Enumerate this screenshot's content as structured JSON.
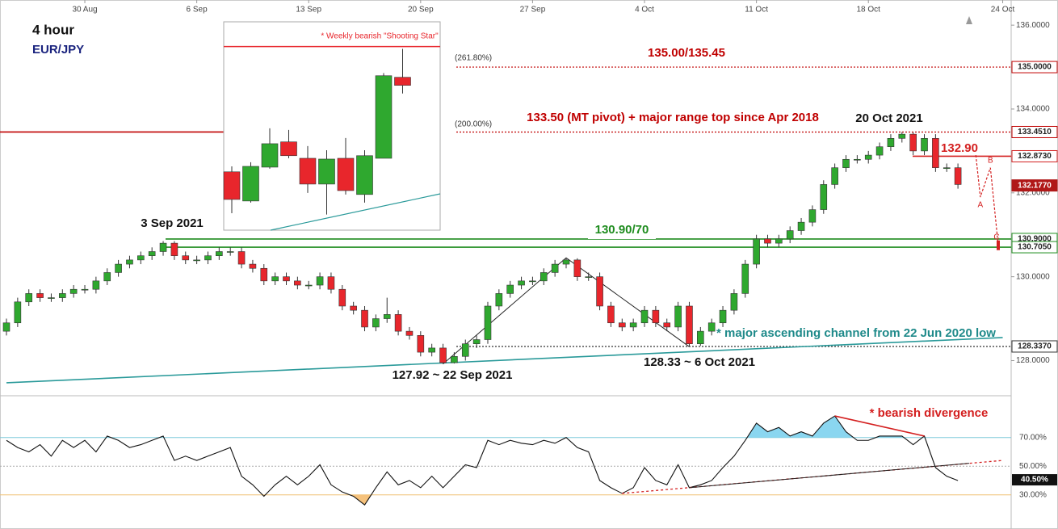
{
  "chart_data": [
    {
      "type": "candlestick",
      "title": "4 hour",
      "subtitle": "EUR/JPY",
      "categories": [
        null,
        null,
        null,
        null,
        null,
        null,
        null,
        "30 Aug",
        null,
        null,
        null,
        null,
        null,
        null,
        null,
        null,
        null,
        "6 Sep",
        null,
        null,
        null,
        null,
        null,
        null,
        null,
        null,
        null,
        "13 Sep",
        null,
        null,
        null,
        null,
        null,
        null,
        null,
        null,
        null,
        "20 Sep",
        null,
        null,
        null,
        null,
        null,
        null,
        null,
        null,
        null,
        "27 Sep",
        null,
        null,
        null,
        null,
        null,
        null,
        null,
        null,
        null,
        "4 Oct",
        null,
        null,
        null,
        null,
        null,
        null,
        null,
        null,
        null,
        "11 Oct",
        null,
        null,
        null,
        null,
        null,
        null,
        null,
        null,
        null,
        "18 Oct",
        null,
        null,
        null,
        null,
        null,
        null,
        null,
        null,
        null,
        null,
        null,
        "24 Oct"
      ],
      "open": [
        128.7,
        128.9,
        129.4,
        129.6,
        129.5,
        129.5,
        129.6,
        129.7,
        129.7,
        129.9,
        130.1,
        130.3,
        130.4,
        130.5,
        130.6,
        130.8,
        130.5,
        130.4,
        130.4,
        130.5,
        130.6,
        130.6,
        130.3,
        130.2,
        129.9,
        130.0,
        129.9,
        129.8,
        129.8,
        130.0,
        129.7,
        129.3,
        129.2,
        128.8,
        129.0,
        129.1,
        128.7,
        128.6,
        128.2,
        128.3,
        127.95,
        128.1,
        128.4,
        128.5,
        129.3,
        129.6,
        129.8,
        129.9,
        129.9,
        130.1,
        130.3,
        130.4,
        130.0,
        130.0,
        129.3,
        128.9,
        128.8,
        128.9,
        129.2,
        128.9,
        128.8,
        129.3,
        128.4,
        128.7,
        128.9,
        129.2,
        129.6,
        130.3,
        130.9,
        130.8,
        130.9,
        131.1,
        131.3,
        131.6,
        132.2,
        132.6,
        132.8,
        132.8,
        132.9,
        133.1,
        133.3,
        133.4,
        133.0,
        133.3,
        132.6,
        132.6,
        null,
        null,
        null,
        null
      ],
      "high": [
        129.0,
        129.5,
        129.7,
        129.7,
        129.6,
        129.7,
        129.8,
        129.8,
        130.0,
        130.2,
        130.4,
        130.5,
        130.6,
        130.7,
        130.85,
        130.85,
        130.6,
        130.5,
        130.6,
        130.7,
        130.7,
        130.7,
        130.4,
        130.3,
        130.1,
        130.1,
        130.0,
        129.9,
        130.1,
        130.1,
        129.8,
        129.4,
        129.3,
        129.1,
        129.5,
        129.2,
        128.8,
        128.7,
        128.4,
        128.4,
        128.2,
        128.5,
        128.6,
        129.4,
        129.7,
        129.9,
        130.0,
        130.0,
        130.2,
        130.4,
        130.45,
        130.44,
        130.1,
        130.1,
        129.4,
        129.0,
        129.0,
        129.3,
        129.3,
        129.0,
        129.4,
        129.4,
        128.8,
        129.0,
        129.3,
        129.7,
        130.4,
        131.0,
        131.0,
        131.0,
        131.2,
        131.4,
        131.7,
        132.3,
        132.7,
        132.9,
        132.9,
        133.0,
        133.2,
        133.4,
        133.45,
        133.44,
        133.4,
        133.4,
        132.7,
        132.7,
        null,
        null,
        null,
        null
      ],
      "low": [
        128.6,
        128.8,
        129.3,
        129.4,
        129.4,
        129.4,
        129.5,
        129.6,
        129.6,
        129.8,
        130.0,
        130.2,
        130.3,
        130.4,
        130.5,
        130.4,
        130.3,
        130.3,
        130.3,
        130.4,
        130.5,
        130.2,
        130.1,
        129.8,
        129.8,
        129.8,
        129.7,
        129.7,
        129.7,
        129.6,
        129.2,
        129.1,
        128.7,
        128.7,
        128.9,
        128.6,
        128.5,
        128.1,
        128.1,
        127.92,
        127.93,
        128.0,
        128.3,
        128.4,
        129.2,
        129.5,
        129.7,
        129.8,
        129.8,
        130.0,
        130.2,
        129.9,
        129.9,
        129.2,
        128.8,
        128.7,
        128.7,
        128.8,
        128.8,
        128.7,
        128.7,
        128.33,
        128.35,
        128.6,
        128.8,
        129.1,
        129.5,
        130.2,
        130.7,
        130.7,
        130.8,
        131.0,
        131.2,
        131.5,
        132.1,
        132.5,
        132.7,
        132.7,
        132.8,
        133.0,
        133.2,
        132.9,
        132.9,
        132.5,
        132.5,
        132.1,
        null,
        null,
        null,
        null
      ],
      "close": [
        128.9,
        129.4,
        129.6,
        129.5,
        129.5,
        129.6,
        129.7,
        129.7,
        129.9,
        130.1,
        130.3,
        130.4,
        130.5,
        130.6,
        130.8,
        130.5,
        130.4,
        130.4,
        130.5,
        130.6,
        130.6,
        130.3,
        130.2,
        129.9,
        130.0,
        129.9,
        129.8,
        129.8,
        130.0,
        129.7,
        129.3,
        129.2,
        128.8,
        129.0,
        129.1,
        128.7,
        128.6,
        128.2,
        128.3,
        127.95,
        128.1,
        128.4,
        128.5,
        129.3,
        129.6,
        129.8,
        129.9,
        129.9,
        130.1,
        130.3,
        130.4,
        130.0,
        130.0,
        129.3,
        128.9,
        128.8,
        128.9,
        129.2,
        128.9,
        128.8,
        129.3,
        128.4,
        128.7,
        128.9,
        129.2,
        129.6,
        130.3,
        130.9,
        130.8,
        130.9,
        131.1,
        131.3,
        131.6,
        132.2,
        132.6,
        132.8,
        132.8,
        132.9,
        133.1,
        133.3,
        133.4,
        133.0,
        133.3,
        132.6,
        132.6,
        132.2,
        null,
        null,
        null,
        null
      ],
      "up_color": "#2fa82f",
      "down_color": "#e8262c",
      "ylim": [
        127.2,
        136.6
      ],
      "yticks": [
        {
          "value": 128,
          "label": "128.0000"
        },
        {
          "value": 130,
          "label": "130.0000"
        },
        {
          "value": 132,
          "label": "132.0000"
        },
        {
          "value": 134,
          "label": "134.0000"
        },
        {
          "value": 136,
          "label": "136.0000"
        }
      ],
      "levels": [
        {
          "value": 135.0,
          "label": "135.0000",
          "color": "#c00000"
        },
        {
          "value": 133.451,
          "label": "133.4510",
          "color": "#c00000"
        },
        {
          "value": 132.873,
          "label": "132.8730",
          "color": "#d42020"
        },
        {
          "value": 132.177,
          "label": "132.1770",
          "color": "#b01818",
          "highlight": true
        },
        {
          "value": 130.9,
          "label": "130.9000",
          "color": "#1e8c1e"
        },
        {
          "value": 130.705,
          "label": "130.7050",
          "color": "#1e8c1e"
        },
        {
          "value": 128.337,
          "label": "128.3370",
          "color": "#333333"
        }
      ],
      "zigzag": {
        "x": [
          39,
          50,
          61
        ],
        "values": [
          127.92,
          130.45,
          128.33
        ]
      },
      "channel": {
        "x": [
          0,
          89
        ],
        "values": [
          127.47,
          128.55
        ],
        "color": "#2a9a9a"
      },
      "projection": [
        {
          "x": 86.6,
          "value": 132.9
        },
        {
          "x": 87.0,
          "value": 131.9,
          "label": "A"
        },
        {
          "x": 87.9,
          "value": 132.6,
          "label": "B"
        },
        {
          "x": 88.6,
          "value": 130.75,
          "label": "C"
        }
      ],
      "annotations": {
        "fib_261": "(261.80%)",
        "target": "135.00/135.45",
        "fib_200": "(200.00%)",
        "pivot": "133.50 (MT pivot) + major range top since Apr 2018",
        "high_date": "20 Oct 2021",
        "resistance": "132.90",
        "sep_high": "3 Sep 2021",
        "support": "130.90/70",
        "sep_low": "127.92 ~ 22 Sep 2021",
        "oct_low": "128.33 ~ 6 Oct 2021",
        "channel": "* major ascending channel from 22 Jun 2020 low"
      }
    },
    {
      "type": "line",
      "color": "#111111",
      "values": [
        68,
        63,
        60,
        65,
        57,
        68,
        63,
        68,
        60,
        71,
        68,
        63,
        65,
        68,
        71,
        54,
        57,
        54,
        57,
        60,
        63,
        43,
        37,
        29,
        37,
        43,
        37,
        43,
        51,
        37,
        32,
        29,
        23,
        35,
        46,
        37,
        40,
        35,
        43,
        35,
        43,
        51,
        49,
        68,
        65,
        68,
        66,
        65,
        68,
        66,
        70,
        63,
        60,
        40,
        35,
        31,
        35,
        49,
        40,
        37,
        51,
        35,
        37,
        40,
        49,
        57,
        68,
        80,
        74,
        77,
        71,
        74,
        71,
        80,
        85,
        74,
        68,
        68,
        71,
        71,
        71,
        65,
        71,
        49,
        43,
        40,
        null,
        null,
        null,
        null
      ],
      "ylim": [
        9,
        98
      ],
      "yticks": [
        {
          "value": 30,
          "label": "30.00%"
        },
        {
          "value": 50,
          "label": "50.00%"
        },
        {
          "value": 70,
          "label": "70.00%"
        }
      ],
      "tick_colors": [
        "#f0c070",
        "#aaaaaa",
        "#7cc8d8"
      ],
      "tick_styles": [
        "solid",
        "dotted",
        "solid"
      ],
      "overbought_fill": "#8ad6f0",
      "oversold_fill": "#f6c27c",
      "last": {
        "value": 40.5,
        "label": "40.50%"
      },
      "divergence": {
        "x": [
          74,
          82
        ],
        "values": [
          85,
          71
        ],
        "color": "#d42020",
        "label": "* bearish divergence"
      },
      "support": {
        "x": [
          55,
          89
        ],
        "values": [
          31,
          54
        ],
        "color": "#d42020"
      },
      "trendline": {
        "x": [
          61,
          86
        ],
        "values": [
          35,
          52
        ],
        "color": "#222222"
      }
    },
    {
      "type": "candlestick",
      "open": [
        128.64,
        127.52,
        128.82,
        129.79,
        129.16,
        128.17,
        129.16,
        127.77,
        129.16,
        132.27
      ],
      "high": [
        128.85,
        129.01,
        130.31,
        130.25,
        129.63,
        129.47,
        129.94,
        129.47,
        132.43,
        133.36
      ],
      "low": [
        127.05,
        127.46,
        128.76,
        129.16,
        127.83,
        127.0,
        127.77,
        127.46,
        129.16,
        131.65
      ],
      "close": [
        127.58,
        128.85,
        129.72,
        129.26,
        128.17,
        129.13,
        127.92,
        129.26,
        132.33,
        131.96
      ],
      "up_color": "#2fa82f",
      "down_color": "#e8262c",
      "ylim": [
        126.4,
        134.4
      ],
      "level": {
        "value": 133.45,
        "color": "#e8262c",
        "text": "* Weekly bearish \"Shooting Star\""
      }
    }
  ]
}
